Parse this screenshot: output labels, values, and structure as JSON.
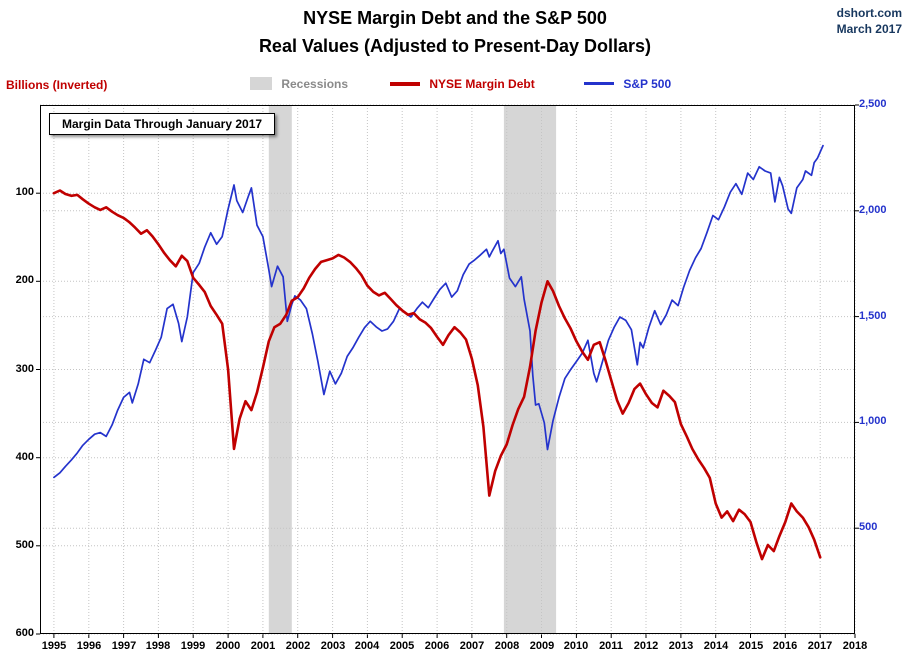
{
  "header": {
    "title_line1": "NYSE Margin Debt and the S&P 500",
    "title_line2": "Real Values (Adjusted to Present-Day Dollars)",
    "source": "dshort.com",
    "date": "March 2017"
  },
  "legend": {
    "axis_label_left": "Billions (Inverted)",
    "recessions": "Recessions",
    "margin_debt": "NYSE Margin Debt",
    "sp500": "S&P 500"
  },
  "annotation": "Margin Data Through January 2017",
  "colors": {
    "margin_debt": "#c00000",
    "sp500": "#2433cc",
    "recession": "#d6d6d6",
    "grid": "#c4c4c4",
    "header_blue": "#17375e",
    "legend_gray": "#8a8a8a",
    "axis_left_text": "#000000",
    "axis_right_text": "#2433cc"
  },
  "chart_data": {
    "type": "line",
    "title": "NYSE Margin Debt and the S&P 500 — Real Values (Adjusted to Present-Day Dollars)",
    "xlabel": "",
    "legend_position": "top",
    "grid": "dotted",
    "x_range": [
      1994.6,
      2018
    ],
    "x_ticks": [
      1995,
      1996,
      1997,
      1998,
      1999,
      2000,
      2001,
      2002,
      2003,
      2004,
      2005,
      2006,
      2007,
      2008,
      2009,
      2010,
      2011,
      2012,
      2013,
      2014,
      2015,
      2016,
      2017,
      2018
    ],
    "left_axis": {
      "label": "Billions (Inverted)",
      "inverted": true,
      "range": [
        0,
        600
      ],
      "ticks": [
        100,
        200,
        300,
        400,
        500,
        600
      ]
    },
    "right_axis": {
      "label": "S&P 500",
      "range": [
        0,
        2500
      ],
      "ticks": [
        2500,
        2000,
        1500,
        1000,
        500
      ]
    },
    "recessions": [
      [
        2001.17,
        2001.83
      ],
      [
        2007.92,
        2009.42
      ]
    ],
    "series": [
      {
        "name": "NYSE Margin Debt",
        "axis": "left",
        "color": "#c00000",
        "width": 2.6,
        "points": [
          [
            1995.0,
            100
          ],
          [
            1995.17,
            97
          ],
          [
            1995.33,
            101
          ],
          [
            1995.5,
            103
          ],
          [
            1995.67,
            102
          ],
          [
            1995.83,
            107
          ],
          [
            1996.0,
            112
          ],
          [
            1996.17,
            116
          ],
          [
            1996.33,
            119
          ],
          [
            1996.5,
            116
          ],
          [
            1996.67,
            121
          ],
          [
            1996.83,
            125
          ],
          [
            1997.0,
            128
          ],
          [
            1997.17,
            133
          ],
          [
            1997.33,
            139
          ],
          [
            1997.5,
            146
          ],
          [
            1997.67,
            142
          ],
          [
            1997.83,
            149
          ],
          [
            1998.0,
            158
          ],
          [
            1998.17,
            168
          ],
          [
            1998.33,
            176
          ],
          [
            1998.5,
            183
          ],
          [
            1998.67,
            171
          ],
          [
            1998.83,
            177
          ],
          [
            1999.0,
            196
          ],
          [
            1999.17,
            204
          ],
          [
            1999.33,
            212
          ],
          [
            1999.5,
            228
          ],
          [
            1999.67,
            238
          ],
          [
            1999.83,
            248
          ],
          [
            2000.0,
            300
          ],
          [
            2000.17,
            390
          ],
          [
            2000.33,
            356
          ],
          [
            2000.5,
            336
          ],
          [
            2000.67,
            346
          ],
          [
            2000.83,
            326
          ],
          [
            2001.0,
            298
          ],
          [
            2001.17,
            268
          ],
          [
            2001.33,
            252
          ],
          [
            2001.5,
            248
          ],
          [
            2001.67,
            238
          ],
          [
            2001.83,
            222
          ],
          [
            2002.0,
            218
          ],
          [
            2002.17,
            208
          ],
          [
            2002.33,
            196
          ],
          [
            2002.5,
            186
          ],
          [
            2002.67,
            178
          ],
          [
            2002.83,
            176
          ],
          [
            2003.0,
            174
          ],
          [
            2003.17,
            170
          ],
          [
            2003.33,
            173
          ],
          [
            2003.5,
            178
          ],
          [
            2003.67,
            185
          ],
          [
            2003.83,
            193
          ],
          [
            2004.0,
            205
          ],
          [
            2004.17,
            212
          ],
          [
            2004.33,
            216
          ],
          [
            2004.5,
            213
          ],
          [
            2004.67,
            220
          ],
          [
            2004.83,
            227
          ],
          [
            2005.0,
            233
          ],
          [
            2005.17,
            238
          ],
          [
            2005.33,
            236
          ],
          [
            2005.5,
            243
          ],
          [
            2005.67,
            247
          ],
          [
            2005.83,
            253
          ],
          [
            2006.0,
            263
          ],
          [
            2006.17,
            272
          ],
          [
            2006.33,
            261
          ],
          [
            2006.5,
            252
          ],
          [
            2006.67,
            258
          ],
          [
            2006.83,
            266
          ],
          [
            2007.0,
            288
          ],
          [
            2007.17,
            318
          ],
          [
            2007.33,
            365
          ],
          [
            2007.5,
            443
          ],
          [
            2007.67,
            415
          ],
          [
            2007.83,
            398
          ],
          [
            2008.0,
            385
          ],
          [
            2008.17,
            363
          ],
          [
            2008.33,
            345
          ],
          [
            2008.5,
            331
          ],
          [
            2008.67,
            297
          ],
          [
            2008.83,
            256
          ],
          [
            2009.0,
            224
          ],
          [
            2009.17,
            200
          ],
          [
            2009.33,
            211
          ],
          [
            2009.5,
            228
          ],
          [
            2009.67,
            242
          ],
          [
            2009.83,
            253
          ],
          [
            2010.0,
            268
          ],
          [
            2010.17,
            280
          ],
          [
            2010.33,
            289
          ],
          [
            2010.5,
            272
          ],
          [
            2010.67,
            269
          ],
          [
            2010.83,
            289
          ],
          [
            2011.0,
            312
          ],
          [
            2011.17,
            335
          ],
          [
            2011.33,
            350
          ],
          [
            2011.5,
            338
          ],
          [
            2011.67,
            322
          ],
          [
            2011.83,
            316
          ],
          [
            2012.0,
            328
          ],
          [
            2012.17,
            338
          ],
          [
            2012.33,
            343
          ],
          [
            2012.5,
            324
          ],
          [
            2012.67,
            330
          ],
          [
            2012.83,
            337
          ],
          [
            2013.0,
            362
          ],
          [
            2013.17,
            376
          ],
          [
            2013.33,
            390
          ],
          [
            2013.5,
            402
          ],
          [
            2013.67,
            412
          ],
          [
            2013.83,
            423
          ],
          [
            2014.0,
            452
          ],
          [
            2014.17,
            468
          ],
          [
            2014.33,
            461
          ],
          [
            2014.5,
            472
          ],
          [
            2014.67,
            459
          ],
          [
            2014.83,
            464
          ],
          [
            2015.0,
            473
          ],
          [
            2015.17,
            496
          ],
          [
            2015.33,
            515
          ],
          [
            2015.5,
            499
          ],
          [
            2015.67,
            506
          ],
          [
            2015.83,
            489
          ],
          [
            2016.0,
            473
          ],
          [
            2016.17,
            452
          ],
          [
            2016.33,
            461
          ],
          [
            2016.5,
            468
          ],
          [
            2016.67,
            479
          ],
          [
            2016.83,
            493
          ],
          [
            2017.0,
            513
          ]
        ]
      },
      {
        "name": "S&P 500",
        "axis": "right",
        "color": "#2433cc",
        "width": 1.7,
        "points": [
          [
            1995.0,
            740
          ],
          [
            1995.17,
            762
          ],
          [
            1995.33,
            792
          ],
          [
            1995.5,
            822
          ],
          [
            1995.67,
            856
          ],
          [
            1995.83,
            892
          ],
          [
            1996.0,
            920
          ],
          [
            1996.17,
            944
          ],
          [
            1996.33,
            952
          ],
          [
            1996.5,
            934
          ],
          [
            1996.67,
            988
          ],
          [
            1996.83,
            1058
          ],
          [
            1997.0,
            1118
          ],
          [
            1997.17,
            1142
          ],
          [
            1997.25,
            1092
          ],
          [
            1997.42,
            1182
          ],
          [
            1997.58,
            1298
          ],
          [
            1997.75,
            1282
          ],
          [
            1997.92,
            1342
          ],
          [
            1998.08,
            1402
          ],
          [
            1998.25,
            1538
          ],
          [
            1998.42,
            1558
          ],
          [
            1998.58,
            1468
          ],
          [
            1998.67,
            1382
          ],
          [
            1998.83,
            1498
          ],
          [
            1999.0,
            1708
          ],
          [
            1999.17,
            1752
          ],
          [
            1999.33,
            1828
          ],
          [
            1999.5,
            1896
          ],
          [
            1999.67,
            1842
          ],
          [
            1999.83,
            1878
          ],
          [
            2000.0,
            2008
          ],
          [
            2000.17,
            2122
          ],
          [
            2000.25,
            2048
          ],
          [
            2000.42,
            1992
          ],
          [
            2000.58,
            2068
          ],
          [
            2000.67,
            2108
          ],
          [
            2000.83,
            1932
          ],
          [
            2001.0,
            1878
          ],
          [
            2001.17,
            1722
          ],
          [
            2001.25,
            1642
          ],
          [
            2001.42,
            1738
          ],
          [
            2001.58,
            1688
          ],
          [
            2001.7,
            1478
          ],
          [
            2001.83,
            1558
          ],
          [
            2001.92,
            1598
          ],
          [
            2002.08,
            1578
          ],
          [
            2002.25,
            1538
          ],
          [
            2002.42,
            1418
          ],
          [
            2002.58,
            1288
          ],
          [
            2002.75,
            1132
          ],
          [
            2002.92,
            1242
          ],
          [
            2003.08,
            1182
          ],
          [
            2003.25,
            1232
          ],
          [
            2003.42,
            1312
          ],
          [
            2003.58,
            1352
          ],
          [
            2003.75,
            1402
          ],
          [
            2003.92,
            1448
          ],
          [
            2004.08,
            1478
          ],
          [
            2004.25,
            1452
          ],
          [
            2004.42,
            1432
          ],
          [
            2004.58,
            1442
          ],
          [
            2004.75,
            1478
          ],
          [
            2004.92,
            1538
          ],
          [
            2005.08,
            1518
          ],
          [
            2005.25,
            1498
          ],
          [
            2005.42,
            1538
          ],
          [
            2005.58,
            1568
          ],
          [
            2005.75,
            1542
          ],
          [
            2005.92,
            1588
          ],
          [
            2006.08,
            1628
          ],
          [
            2006.25,
            1658
          ],
          [
            2006.42,
            1592
          ],
          [
            2006.58,
            1622
          ],
          [
            2006.75,
            1698
          ],
          [
            2006.92,
            1748
          ],
          [
            2007.08,
            1768
          ],
          [
            2007.25,
            1792
          ],
          [
            2007.42,
            1818
          ],
          [
            2007.5,
            1782
          ],
          [
            2007.58,
            1808
          ],
          [
            2007.75,
            1858
          ],
          [
            2007.83,
            1798
          ],
          [
            2007.92,
            1818
          ],
          [
            2008.08,
            1682
          ],
          [
            2008.25,
            1642
          ],
          [
            2008.42,
            1688
          ],
          [
            2008.5,
            1582
          ],
          [
            2008.67,
            1432
          ],
          [
            2008.75,
            1222
          ],
          [
            2008.83,
            1082
          ],
          [
            2008.92,
            1088
          ],
          [
            2009.08,
            998
          ],
          [
            2009.17,
            872
          ],
          [
            2009.33,
            1008
          ],
          [
            2009.5,
            1118
          ],
          [
            2009.67,
            1208
          ],
          [
            2009.83,
            1248
          ],
          [
            2010.0,
            1288
          ],
          [
            2010.17,
            1328
          ],
          [
            2010.33,
            1388
          ],
          [
            2010.5,
            1232
          ],
          [
            2010.58,
            1192
          ],
          [
            2010.75,
            1288
          ],
          [
            2010.92,
            1388
          ],
          [
            2011.08,
            1448
          ],
          [
            2011.25,
            1498
          ],
          [
            2011.42,
            1482
          ],
          [
            2011.58,
            1438
          ],
          [
            2011.75,
            1272
          ],
          [
            2011.83,
            1378
          ],
          [
            2011.92,
            1352
          ],
          [
            2012.08,
            1448
          ],
          [
            2012.25,
            1528
          ],
          [
            2012.42,
            1462
          ],
          [
            2012.58,
            1508
          ],
          [
            2012.75,
            1578
          ],
          [
            2012.92,
            1552
          ],
          [
            2013.08,
            1638
          ],
          [
            2013.25,
            1718
          ],
          [
            2013.42,
            1778
          ],
          [
            2013.58,
            1822
          ],
          [
            2013.75,
            1898
          ],
          [
            2013.92,
            1978
          ],
          [
            2014.08,
            1958
          ],
          [
            2014.25,
            2018
          ],
          [
            2014.42,
            2088
          ],
          [
            2014.58,
            2128
          ],
          [
            2014.75,
            2078
          ],
          [
            2014.92,
            2178
          ],
          [
            2015.08,
            2148
          ],
          [
            2015.25,
            2208
          ],
          [
            2015.42,
            2188
          ],
          [
            2015.58,
            2178
          ],
          [
            2015.7,
            2042
          ],
          [
            2015.83,
            2158
          ],
          [
            2015.92,
            2118
          ],
          [
            2016.08,
            2008
          ],
          [
            2016.17,
            1988
          ],
          [
            2016.33,
            2108
          ],
          [
            2016.5,
            2148
          ],
          [
            2016.58,
            2188
          ],
          [
            2016.75,
            2168
          ],
          [
            2016.83,
            2228
          ],
          [
            2016.92,
            2248
          ],
          [
            2017.08,
            2308
          ]
        ]
      }
    ]
  }
}
